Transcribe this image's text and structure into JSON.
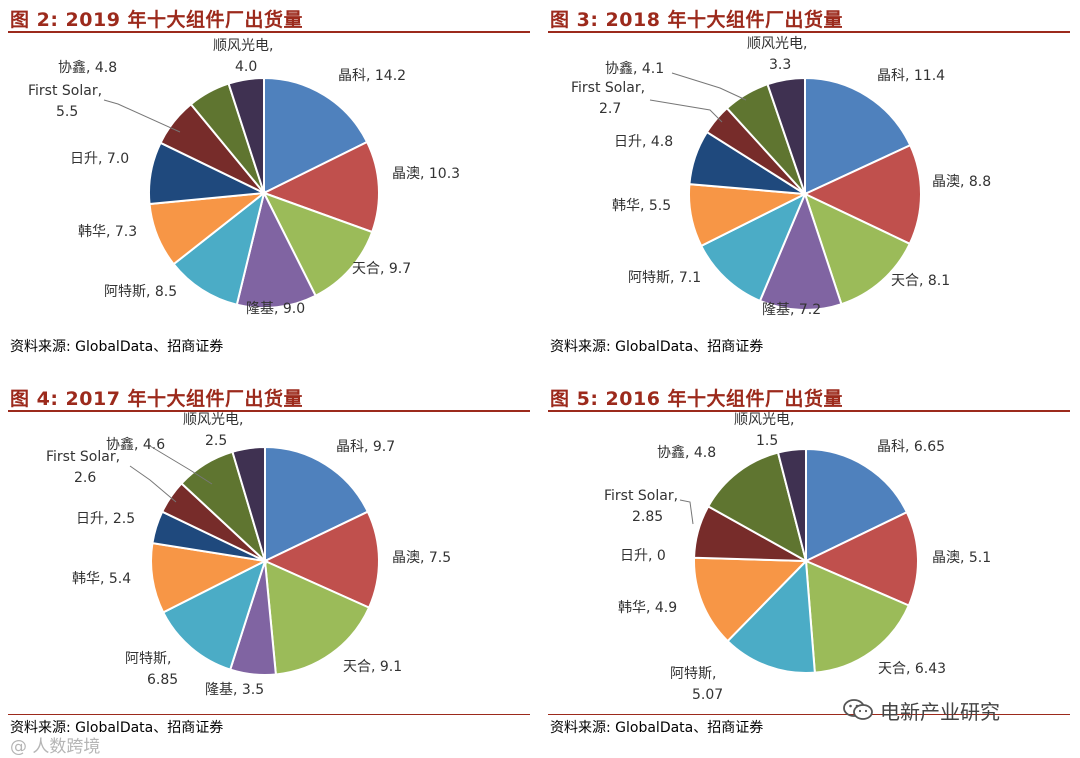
{
  "colors": {
    "title": "#9c2a1c",
    "slices": [
      "#4f81bd",
      "#c0504d",
      "#9bbb59",
      "#8064a2",
      "#4bacc6",
      "#f79646",
      "#1f497d",
      "#772c2a",
      "#5f7530",
      "#3f3151"
    ]
  },
  "watermark": {
    "text": "电新产业研究",
    "icon": "wechat-icon",
    "overlay": "@ 人数跨境"
  },
  "chart_data": [
    {
      "type": "pie",
      "title": "图 2:  2019 年十大组件厂出货量",
      "source": "资料来源:  GlobalData、招商证券",
      "slices": [
        {
          "label": "晶科",
          "value_text": "14.2",
          "value": 14.2
        },
        {
          "label": "晶澳",
          "value_text": "10.3",
          "value": 10.3
        },
        {
          "label": "天合",
          "value_text": "9.7",
          "value": 9.7
        },
        {
          "label": "隆基",
          "value_text": "9.0",
          "value": 9.0
        },
        {
          "label": "阿特斯",
          "value_text": "8.5",
          "value": 8.5
        },
        {
          "label": "韩华",
          "value_text": "7.3",
          "value": 7.3
        },
        {
          "label": "日升",
          "value_text": "7.0",
          "value": 7.0
        },
        {
          "label": "First Solar",
          "value_text": "5.5",
          "value": 5.5
        },
        {
          "label": "协鑫",
          "value_text": "4.8",
          "value": 4.8
        },
        {
          "label": "顺风光电",
          "value_text": "4.0",
          "value": 4.0
        }
      ]
    },
    {
      "type": "pie",
      "title": "图 3:  2018 年十大组件厂出货量",
      "source": "资料来源:  GlobalData、招商证券",
      "slices": [
        {
          "label": "晶科",
          "value_text": "11.4",
          "value": 11.4
        },
        {
          "label": "晶澳",
          "value_text": "8.8",
          "value": 8.8
        },
        {
          "label": "天合",
          "value_text": "8.1",
          "value": 8.1
        },
        {
          "label": "隆基",
          "value_text": "7.2",
          "value": 7.2
        },
        {
          "label": "阿特斯",
          "value_text": "7.1",
          "value": 7.1
        },
        {
          "label": "韩华",
          "value_text": "5.5",
          "value": 5.5
        },
        {
          "label": "日升",
          "value_text": "4.8",
          "value": 4.8
        },
        {
          "label": "First Solar",
          "value_text": "2.7",
          "value": 2.7
        },
        {
          "label": "协鑫",
          "value_text": "4.1",
          "value": 4.1
        },
        {
          "label": "顺风光电",
          "value_text": "3.3",
          "value": 3.3
        }
      ]
    },
    {
      "type": "pie",
      "title": "图 4:  2017 年十大组件厂出货量",
      "source": "资料来源:  GlobalData、招商证券",
      "slices": [
        {
          "label": "晶科",
          "value_text": "9.7",
          "value": 9.7
        },
        {
          "label": "晶澳",
          "value_text": "7.5",
          "value": 7.5
        },
        {
          "label": "天合",
          "value_text": "9.1",
          "value": 9.1
        },
        {
          "label": "隆基",
          "value_text": "3.5",
          "value": 3.5
        },
        {
          "label": "阿特斯",
          "value_text": "6.85",
          "value": 6.85
        },
        {
          "label": "韩华",
          "value_text": "5.4",
          "value": 5.4
        },
        {
          "label": "日升",
          "value_text": "2.5",
          "value": 2.5
        },
        {
          "label": "First Solar",
          "value_text": "2.6",
          "value": 2.6
        },
        {
          "label": "协鑫",
          "value_text": "4.6",
          "value": 4.6
        },
        {
          "label": "顺风光电",
          "value_text": "2.5",
          "value": 2.5
        }
      ]
    },
    {
      "type": "pie",
      "title": "图 5:  2016 年十大组件厂出货量",
      "source": "资料来源:  GlobalData、招商证券",
      "slices": [
        {
          "label": "晶科",
          "value_text": "6.65",
          "value": 6.65
        },
        {
          "label": "晶澳",
          "value_text": "5.1",
          "value": 5.1
        },
        {
          "label": "天合",
          "value_text": "6.43",
          "value": 6.43
        },
        {
          "label": "阿特斯",
          "value_text": "5.07",
          "value": 5.07
        },
        {
          "label": "韩华",
          "value_text": "4.9",
          "value": 4.9
        },
        {
          "label": "日升",
          "value_text": "0",
          "value": 0
        },
        {
          "label": "First Solar",
          "value_text": "2.85",
          "value": 2.85
        },
        {
          "label": "协鑫",
          "value_text": "4.8",
          "value": 4.8
        },
        {
          "label": "顺风光电",
          "value_text": "1.5",
          "value": 1.5
        }
      ]
    }
  ]
}
